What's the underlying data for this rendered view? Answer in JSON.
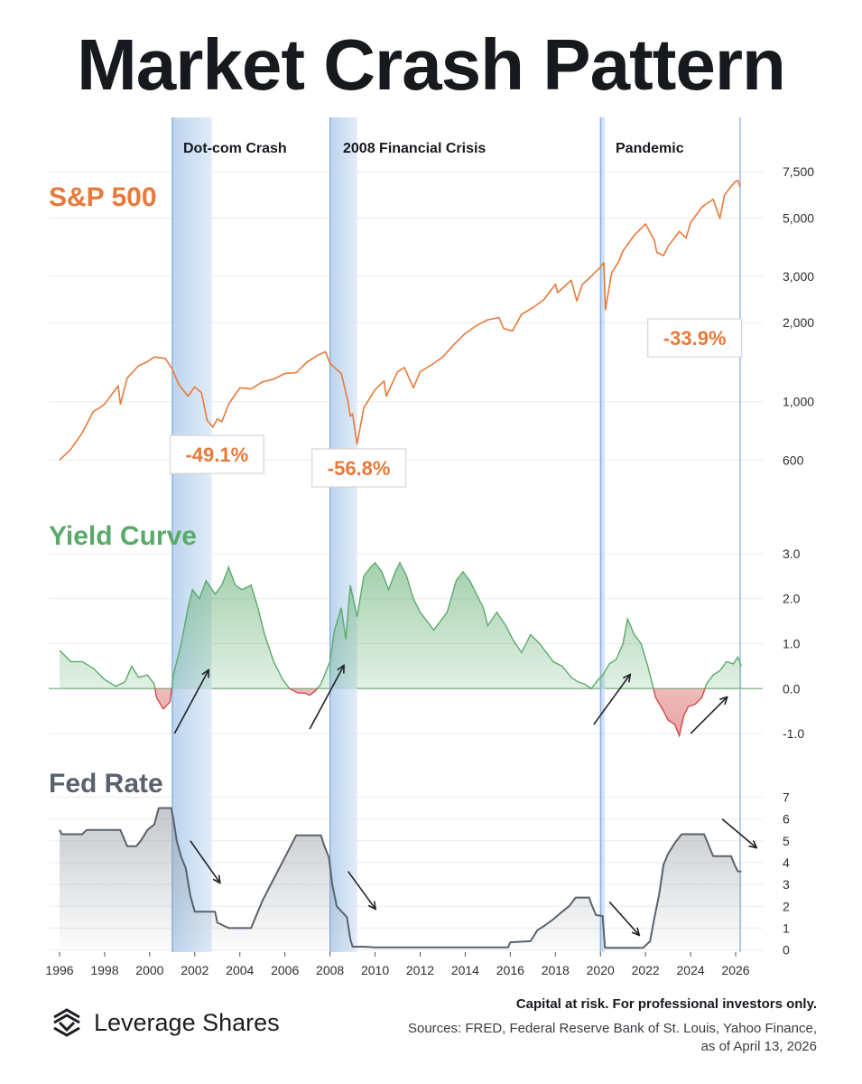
{
  "title": "Market Crash Pattern",
  "brand": {
    "name": "Leverage Shares",
    "logo_icon": "leverage-shares-logo-icon"
  },
  "footer": {
    "disclaimer": "Capital at risk. For professional investors only.",
    "sources_line1": "Sources: FRED, Federal Reserve Bank of St. Louis, Yahoo Finance,",
    "sources_line2": "as of April 13, 2026"
  },
  "colors": {
    "sp500": "#e8793a",
    "yield_positive": "#5aaa6a",
    "yield_negative": "#d24a4a",
    "fed": "#59626c",
    "band": "#b8d2ee",
    "band_edge": "#7fa9d9",
    "title": "#16191d"
  },
  "chart_data": {
    "type": "line",
    "x_ticks": [
      "1996",
      "1998",
      "2000",
      "2002",
      "2004",
      "2006",
      "2008",
      "2010",
      "2012",
      "2014",
      "2016",
      "2018",
      "2020",
      "2022",
      "2024",
      "2026"
    ],
    "xlim": [
      1996,
      2027
    ],
    "crisis_periods": [
      {
        "label": "Dot-com Crash",
        "start": 2001.0,
        "end": 2002.75
      },
      {
        "label": "2008 Financial Crisis",
        "start": 2008.0,
        "end": 2009.2
      },
      {
        "label": "Pandemic",
        "start": 2020.0,
        "end": 2020.2
      }
    ],
    "current_marker": 2026.2,
    "panels": [
      {
        "name": "S&P 500",
        "scale": "log",
        "ylim": [
          560,
          8000
        ],
        "y_ticks": [
          600,
          1000,
          2000,
          3000,
          5000,
          7500
        ],
        "y_tick_labels": [
          "600",
          "1,000",
          "2,000",
          "3,000",
          "5,000",
          "7,500"
        ],
        "drawdowns": [
          {
            "label": "-49.1%",
            "x": 2000.9,
            "y": 630
          },
          {
            "label": "-56.8%",
            "x": 2007.2,
            "y": 560
          },
          {
            "label": "-33.9%",
            "x": 2022.1,
            "y": 1750
          }
        ],
        "points": [
          [
            1996.0,
            600
          ],
          [
            1996.5,
            660
          ],
          [
            1997.0,
            760
          ],
          [
            1997.5,
            920
          ],
          [
            1997.8,
            950
          ],
          [
            1998.0,
            980
          ],
          [
            1998.6,
            1150
          ],
          [
            1998.7,
            980
          ],
          [
            1999.0,
            1230
          ],
          [
            1999.5,
            1370
          ],
          [
            1999.9,
            1420
          ],
          [
            2000.2,
            1480
          ],
          [
            2000.7,
            1460
          ],
          [
            2001.0,
            1330
          ],
          [
            2001.3,
            1160
          ],
          [
            2001.7,
            1050
          ],
          [
            2002.0,
            1140
          ],
          [
            2002.3,
            1080
          ],
          [
            2002.55,
            850
          ],
          [
            2002.8,
            800
          ],
          [
            2003.0,
            860
          ],
          [
            2003.2,
            840
          ],
          [
            2003.5,
            980
          ],
          [
            2004.0,
            1130
          ],
          [
            2004.5,
            1120
          ],
          [
            2005.0,
            1190
          ],
          [
            2005.5,
            1220
          ],
          [
            2006.0,
            1280
          ],
          [
            2006.5,
            1290
          ],
          [
            2007.0,
            1420
          ],
          [
            2007.5,
            1510
          ],
          [
            2007.8,
            1550
          ],
          [
            2008.0,
            1400
          ],
          [
            2008.5,
            1280
          ],
          [
            2008.8,
            1000
          ],
          [
            2008.9,
            880
          ],
          [
            2009.0,
            900
          ],
          [
            2009.2,
            690
          ],
          [
            2009.5,
            950
          ],
          [
            2010.0,
            1110
          ],
          [
            2010.4,
            1200
          ],
          [
            2010.5,
            1050
          ],
          [
            2011.0,
            1300
          ],
          [
            2011.3,
            1350
          ],
          [
            2011.7,
            1130
          ],
          [
            2012.0,
            1300
          ],
          [
            2012.5,
            1380
          ],
          [
            2013.0,
            1480
          ],
          [
            2013.5,
            1650
          ],
          [
            2014.0,
            1820
          ],
          [
            2014.5,
            1950
          ],
          [
            2015.0,
            2050
          ],
          [
            2015.5,
            2090
          ],
          [
            2015.7,
            1900
          ],
          [
            2016.1,
            1860
          ],
          [
            2016.5,
            2150
          ],
          [
            2017.0,
            2280
          ],
          [
            2017.5,
            2450
          ],
          [
            2018.0,
            2800
          ],
          [
            2018.1,
            2600
          ],
          [
            2018.7,
            2900
          ],
          [
            2018.95,
            2420
          ],
          [
            2019.2,
            2800
          ],
          [
            2019.5,
            2950
          ],
          [
            2020.0,
            3250
          ],
          [
            2020.15,
            3380
          ],
          [
            2020.22,
            2240
          ],
          [
            2020.5,
            3100
          ],
          [
            2020.8,
            3400
          ],
          [
            2021.0,
            3750
          ],
          [
            2021.5,
            4300
          ],
          [
            2022.0,
            4750
          ],
          [
            2022.4,
            4100
          ],
          [
            2022.5,
            3700
          ],
          [
            2022.8,
            3600
          ],
          [
            2023.0,
            3900
          ],
          [
            2023.5,
            4450
          ],
          [
            2023.8,
            4200
          ],
          [
            2024.0,
            4800
          ],
          [
            2024.5,
            5500
          ],
          [
            2025.0,
            5900
          ],
          [
            2025.3,
            4980
          ],
          [
            2025.5,
            6100
          ],
          [
            2025.8,
            6600
          ],
          [
            2026.0,
            6900
          ],
          [
            2026.1,
            6950
          ],
          [
            2026.2,
            6550
          ]
        ]
      },
      {
        "name": "Yield Curve",
        "scale": "linear",
        "ylim": [
          -1.1,
          3.2
        ],
        "y_ticks": [
          3.0,
          2.0,
          1.0,
          0.0,
          -1.0
        ],
        "y_tick_labels": [
          "3.0",
          "2.0",
          "1.0",
          "0.0",
          "-1.0"
        ],
        "points": [
          [
            1996.0,
            0.85
          ],
          [
            1996.5,
            0.6
          ],
          [
            1997.0,
            0.6
          ],
          [
            1997.5,
            0.45
          ],
          [
            1998.0,
            0.2
          ],
          [
            1998.5,
            0.05
          ],
          [
            1998.9,
            0.15
          ],
          [
            1999.2,
            0.5
          ],
          [
            1999.5,
            0.25
          ],
          [
            1999.9,
            0.3
          ],
          [
            2000.2,
            0.1
          ],
          [
            2000.3,
            -0.2
          ],
          [
            2000.6,
            -0.45
          ],
          [
            2000.9,
            -0.3
          ],
          [
            2001.05,
            0.3
          ],
          [
            2001.4,
            1.0
          ],
          [
            2001.7,
            1.8
          ],
          [
            2001.9,
            2.2
          ],
          [
            2002.2,
            2.0
          ],
          [
            2002.5,
            2.4
          ],
          [
            2002.9,
            2.1
          ],
          [
            2003.2,
            2.3
          ],
          [
            2003.5,
            2.7
          ],
          [
            2003.8,
            2.3
          ],
          [
            2004.1,
            2.2
          ],
          [
            2004.5,
            2.3
          ],
          [
            2004.8,
            1.8
          ],
          [
            2005.1,
            1.2
          ],
          [
            2005.5,
            0.6
          ],
          [
            2005.9,
            0.2
          ],
          [
            2006.2,
            0.0
          ],
          [
            2006.6,
            -0.1
          ],
          [
            2006.9,
            -0.1
          ],
          [
            2007.1,
            -0.15
          ],
          [
            2007.35,
            -0.05
          ],
          [
            2007.6,
            0.1
          ],
          [
            2008.0,
            0.6
          ],
          [
            2008.2,
            1.3
          ],
          [
            2008.5,
            1.8
          ],
          [
            2008.7,
            1.1
          ],
          [
            2008.9,
            2.3
          ],
          [
            2009.2,
            1.6
          ],
          [
            2009.5,
            2.5
          ],
          [
            2009.8,
            2.7
          ],
          [
            2010.0,
            2.8
          ],
          [
            2010.3,
            2.6
          ],
          [
            2010.6,
            2.2
          ],
          [
            2010.9,
            2.6
          ],
          [
            2011.1,
            2.8
          ],
          [
            2011.4,
            2.5
          ],
          [
            2011.7,
            2.0
          ],
          [
            2012.0,
            1.7
          ],
          [
            2012.3,
            1.5
          ],
          [
            2012.6,
            1.3
          ],
          [
            2012.9,
            1.5
          ],
          [
            2013.2,
            1.7
          ],
          [
            2013.6,
            2.4
          ],
          [
            2013.9,
            2.6
          ],
          [
            2014.2,
            2.4
          ],
          [
            2014.5,
            2.1
          ],
          [
            2014.8,
            1.8
          ],
          [
            2015.0,
            1.4
          ],
          [
            2015.4,
            1.7
          ],
          [
            2015.8,
            1.4
          ],
          [
            2016.1,
            1.1
          ],
          [
            2016.5,
            0.8
          ],
          [
            2016.9,
            1.2
          ],
          [
            2017.3,
            1.0
          ],
          [
            2017.6,
            0.8
          ],
          [
            2017.9,
            0.6
          ],
          [
            2018.3,
            0.5
          ],
          [
            2018.7,
            0.25
          ],
          [
            2019.0,
            0.15
          ],
          [
            2019.3,
            0.1
          ],
          [
            2019.6,
            0.0
          ],
          [
            2019.9,
            0.2
          ],
          [
            2020.1,
            0.3
          ],
          [
            2020.4,
            0.55
          ],
          [
            2020.7,
            0.65
          ],
          [
            2021.0,
            1.0
          ],
          [
            2021.2,
            1.55
          ],
          [
            2021.5,
            1.2
          ],
          [
            2021.8,
            1.0
          ],
          [
            2022.1,
            0.5
          ],
          [
            2022.3,
            0.1
          ],
          [
            2022.45,
            -0.2
          ],
          [
            2022.8,
            -0.5
          ],
          [
            2023.0,
            -0.7
          ],
          [
            2023.3,
            -0.8
          ],
          [
            2023.5,
            -1.05
          ],
          [
            2023.7,
            -0.6
          ],
          [
            2023.9,
            -0.4
          ],
          [
            2024.2,
            -0.35
          ],
          [
            2024.5,
            -0.2
          ],
          [
            2024.7,
            0.1
          ],
          [
            2025.0,
            0.3
          ],
          [
            2025.3,
            0.4
          ],
          [
            2025.6,
            0.6
          ],
          [
            2025.9,
            0.55
          ],
          [
            2026.1,
            0.7
          ],
          [
            2026.25,
            0.5
          ]
        ]
      },
      {
        "name": "Fed Rate",
        "scale": "linear",
        "ylim": [
          -0.1,
          7.1
        ],
        "y_ticks": [
          7,
          6,
          5,
          4,
          3,
          2,
          1,
          0
        ],
        "y_tick_labels": [
          "7",
          "6",
          "5",
          "4",
          "3",
          "2",
          "1",
          "0"
        ],
        "points": [
          [
            1996.0,
            5.5
          ],
          [
            1996.1,
            5.3
          ],
          [
            1997.0,
            5.3
          ],
          [
            1997.2,
            5.5
          ],
          [
            1998.7,
            5.5
          ],
          [
            1998.9,
            5.0
          ],
          [
            1999.0,
            4.75
          ],
          [
            1999.4,
            4.75
          ],
          [
            1999.6,
            5.0
          ],
          [
            1999.9,
            5.5
          ],
          [
            2000.2,
            5.75
          ],
          [
            2000.4,
            6.5
          ],
          [
            2000.95,
            6.5
          ],
          [
            2001.05,
            6.0
          ],
          [
            2001.2,
            5.0
          ],
          [
            2001.4,
            4.25
          ],
          [
            2001.6,
            3.75
          ],
          [
            2001.8,
            2.5
          ],
          [
            2002.0,
            1.75
          ],
          [
            2002.9,
            1.75
          ],
          [
            2003.0,
            1.25
          ],
          [
            2003.5,
            1.0
          ],
          [
            2004.5,
            1.0
          ],
          [
            2004.7,
            1.5
          ],
          [
            2005.0,
            2.25
          ],
          [
            2005.5,
            3.25
          ],
          [
            2006.0,
            4.25
          ],
          [
            2006.5,
            5.25
          ],
          [
            2007.6,
            5.25
          ],
          [
            2007.75,
            4.75
          ],
          [
            2007.95,
            4.25
          ],
          [
            2008.1,
            3.0
          ],
          [
            2008.3,
            2.0
          ],
          [
            2008.75,
            1.5
          ],
          [
            2008.9,
            0.5
          ],
          [
            2009.0,
            0.15
          ],
          [
            2009.5,
            0.15
          ],
          [
            2010.0,
            0.12
          ],
          [
            2015.9,
            0.12
          ],
          [
            2016.0,
            0.35
          ],
          [
            2016.9,
            0.4
          ],
          [
            2017.2,
            0.9
          ],
          [
            2017.5,
            1.1
          ],
          [
            2017.9,
            1.4
          ],
          [
            2018.3,
            1.75
          ],
          [
            2018.6,
            2.0
          ],
          [
            2018.9,
            2.4
          ],
          [
            2019.5,
            2.4
          ],
          [
            2019.6,
            2.1
          ],
          [
            2019.8,
            1.6
          ],
          [
            2020.1,
            1.55
          ],
          [
            2020.2,
            0.1
          ],
          [
            2021.9,
            0.1
          ],
          [
            2022.2,
            0.4
          ],
          [
            2022.4,
            1.5
          ],
          [
            2022.6,
            2.5
          ],
          [
            2022.8,
            3.9
          ],
          [
            2023.0,
            4.4
          ],
          [
            2023.3,
            4.9
          ],
          [
            2023.6,
            5.3
          ],
          [
            2024.6,
            5.3
          ],
          [
            2024.8,
            4.8
          ],
          [
            2025.0,
            4.3
          ],
          [
            2025.8,
            4.3
          ],
          [
            2025.95,
            3.9
          ],
          [
            2026.1,
            3.6
          ],
          [
            2026.25,
            3.6
          ]
        ]
      }
    ],
    "trend_arrows": [
      {
        "panel": "Yield Curve",
        "from": [
          2001.1,
          -1.0
        ],
        "to": [
          2002.6,
          0.4
        ]
      },
      {
        "panel": "Yield Curve",
        "from": [
          2007.1,
          -0.9
        ],
        "to": [
          2008.6,
          0.5
        ]
      },
      {
        "panel": "Yield Curve",
        "from": [
          2019.7,
          -0.8
        ],
        "to": [
          2021.3,
          0.3
        ]
      },
      {
        "panel": "Yield Curve",
        "from": [
          2024.0,
          -1.0
        ],
        "to": [
          2025.6,
          -0.2
        ]
      },
      {
        "panel": "Fed Rate",
        "from": [
          2001.8,
          5.0
        ],
        "to": [
          2003.1,
          3.1
        ]
      },
      {
        "panel": "Fed Rate",
        "from": [
          2008.8,
          3.6
        ],
        "to": [
          2010.0,
          1.9
        ]
      },
      {
        "panel": "Fed Rate",
        "from": [
          2020.4,
          2.2
        ],
        "to": [
          2021.7,
          0.7
        ]
      },
      {
        "panel": "Fed Rate",
        "from": [
          2025.4,
          6.0
        ],
        "to": [
          2026.9,
          4.7
        ]
      }
    ]
  }
}
